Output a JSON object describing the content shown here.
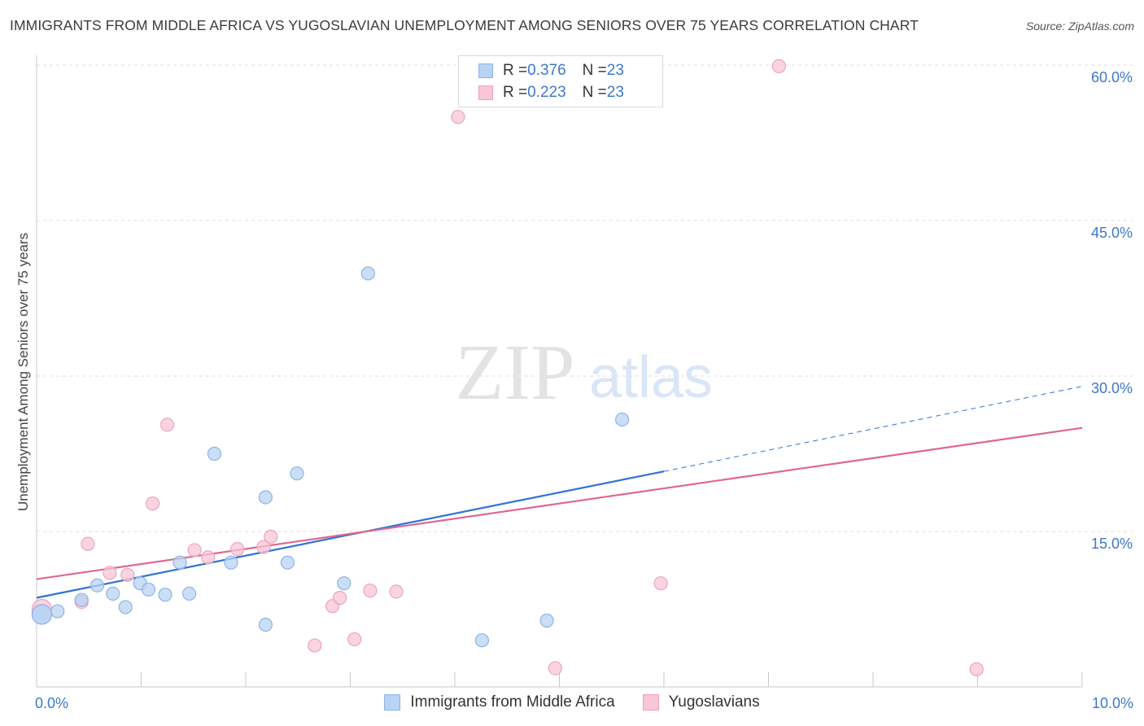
{
  "title": "IMMIGRANTS FROM MIDDLE AFRICA VS YUGOSLAVIAN UNEMPLOYMENT AMONG SENIORS OVER 75 YEARS CORRELATION CHART",
  "source": "Source: ZipAtlas.com",
  "watermark": {
    "zip": "ZIP",
    "atlas": "atlas"
  },
  "legend": {
    "rows": [
      {
        "r_label": "R = ",
        "r_value": "0.376",
        "n_label": "N = ",
        "n_value": "23"
      },
      {
        "r_label": "R = ",
        "r_value": "0.223",
        "n_label": "N = ",
        "n_value": "23"
      }
    ]
  },
  "colors": {
    "blue_fill": "#b8d3f3",
    "blue_stroke": "#8db4e6",
    "blue_line": "#2f73d2",
    "pink_fill": "#f8c6d5",
    "pink_stroke": "#eea3bb",
    "pink_line": "#e0668f",
    "tick_text": "#3d78c9",
    "grid": "#dedede"
  },
  "chart_data": {
    "type": "scatter",
    "title": "IMMIGRANTS FROM MIDDLE AFRICA VS YUGOSLAVIAN UNEMPLOYMENT AMONG SENIORS OVER 75 YEARS CORRELATION CHART",
    "xlabel": "",
    "ylabel": "Unemployment Among Seniors over 75 years",
    "xlim": [
      0,
      10
    ],
    "ylim": [
      0,
      60
    ],
    "x_ticks": [
      "0.0%",
      "10.0%"
    ],
    "y_ticks": [
      {
        "value": 15,
        "label": "15.0%"
      },
      {
        "value": 30,
        "label": "30.0%"
      },
      {
        "value": 45,
        "label": "45.0%"
      },
      {
        "value": 60,
        "label": "60.0%"
      }
    ],
    "grid": true,
    "legend_position": "bottom",
    "series": [
      {
        "name": "Immigrants from Middle Africa",
        "color": "#b8d3f3",
        "points": [
          [
            0.05,
            7.0
          ],
          [
            0.2,
            7.3
          ],
          [
            0.43,
            8.4
          ],
          [
            0.58,
            9.8
          ],
          [
            0.73,
            9.0
          ],
          [
            0.85,
            7.7
          ],
          [
            0.99,
            10.0
          ],
          [
            1.07,
            9.4
          ],
          [
            1.23,
            8.9
          ],
          [
            1.37,
            12.0
          ],
          [
            1.46,
            9.0
          ],
          [
            1.7,
            22.5
          ],
          [
            1.86,
            12.0
          ],
          [
            2.19,
            6.0
          ],
          [
            2.19,
            18.3
          ],
          [
            2.4,
            12.0
          ],
          [
            2.49,
            20.6
          ],
          [
            2.94,
            10.0
          ],
          [
            3.17,
            39.9
          ],
          [
            4.26,
            4.5
          ],
          [
            4.88,
            6.4
          ],
          [
            5.6,
            25.8
          ],
          [
            0.05,
            7.0
          ]
        ],
        "trend": {
          "x0": 0,
          "y0": 8.6,
          "x1": 6.0,
          "y1": 20.8,
          "dash_to_x": 10,
          "dash_to_y": 29.0
        }
      },
      {
        "name": "Yugoslavians",
        "color": "#f8c6d5",
        "points": [
          [
            0.05,
            7.5
          ],
          [
            0.43,
            8.2
          ],
          [
            0.49,
            13.8
          ],
          [
            0.7,
            11.0
          ],
          [
            0.87,
            10.8
          ],
          [
            1.11,
            17.7
          ],
          [
            1.25,
            25.3
          ],
          [
            1.51,
            13.2
          ],
          [
            1.64,
            12.5
          ],
          [
            1.92,
            13.3
          ],
          [
            2.17,
            13.5
          ],
          [
            2.24,
            14.5
          ],
          [
            2.66,
            4.0
          ],
          [
            2.83,
            7.8
          ],
          [
            2.9,
            8.6
          ],
          [
            3.04,
            4.6
          ],
          [
            3.19,
            9.3
          ],
          [
            3.44,
            9.2
          ],
          [
            4.03,
            55.0
          ],
          [
            4.96,
            1.8
          ],
          [
            5.97,
            10.0
          ],
          [
            7.1,
            59.9
          ],
          [
            8.99,
            1.7
          ]
        ],
        "trend": {
          "x0": 0,
          "y0": 10.4,
          "x1": 10,
          "y1": 25.0
        }
      }
    ]
  }
}
